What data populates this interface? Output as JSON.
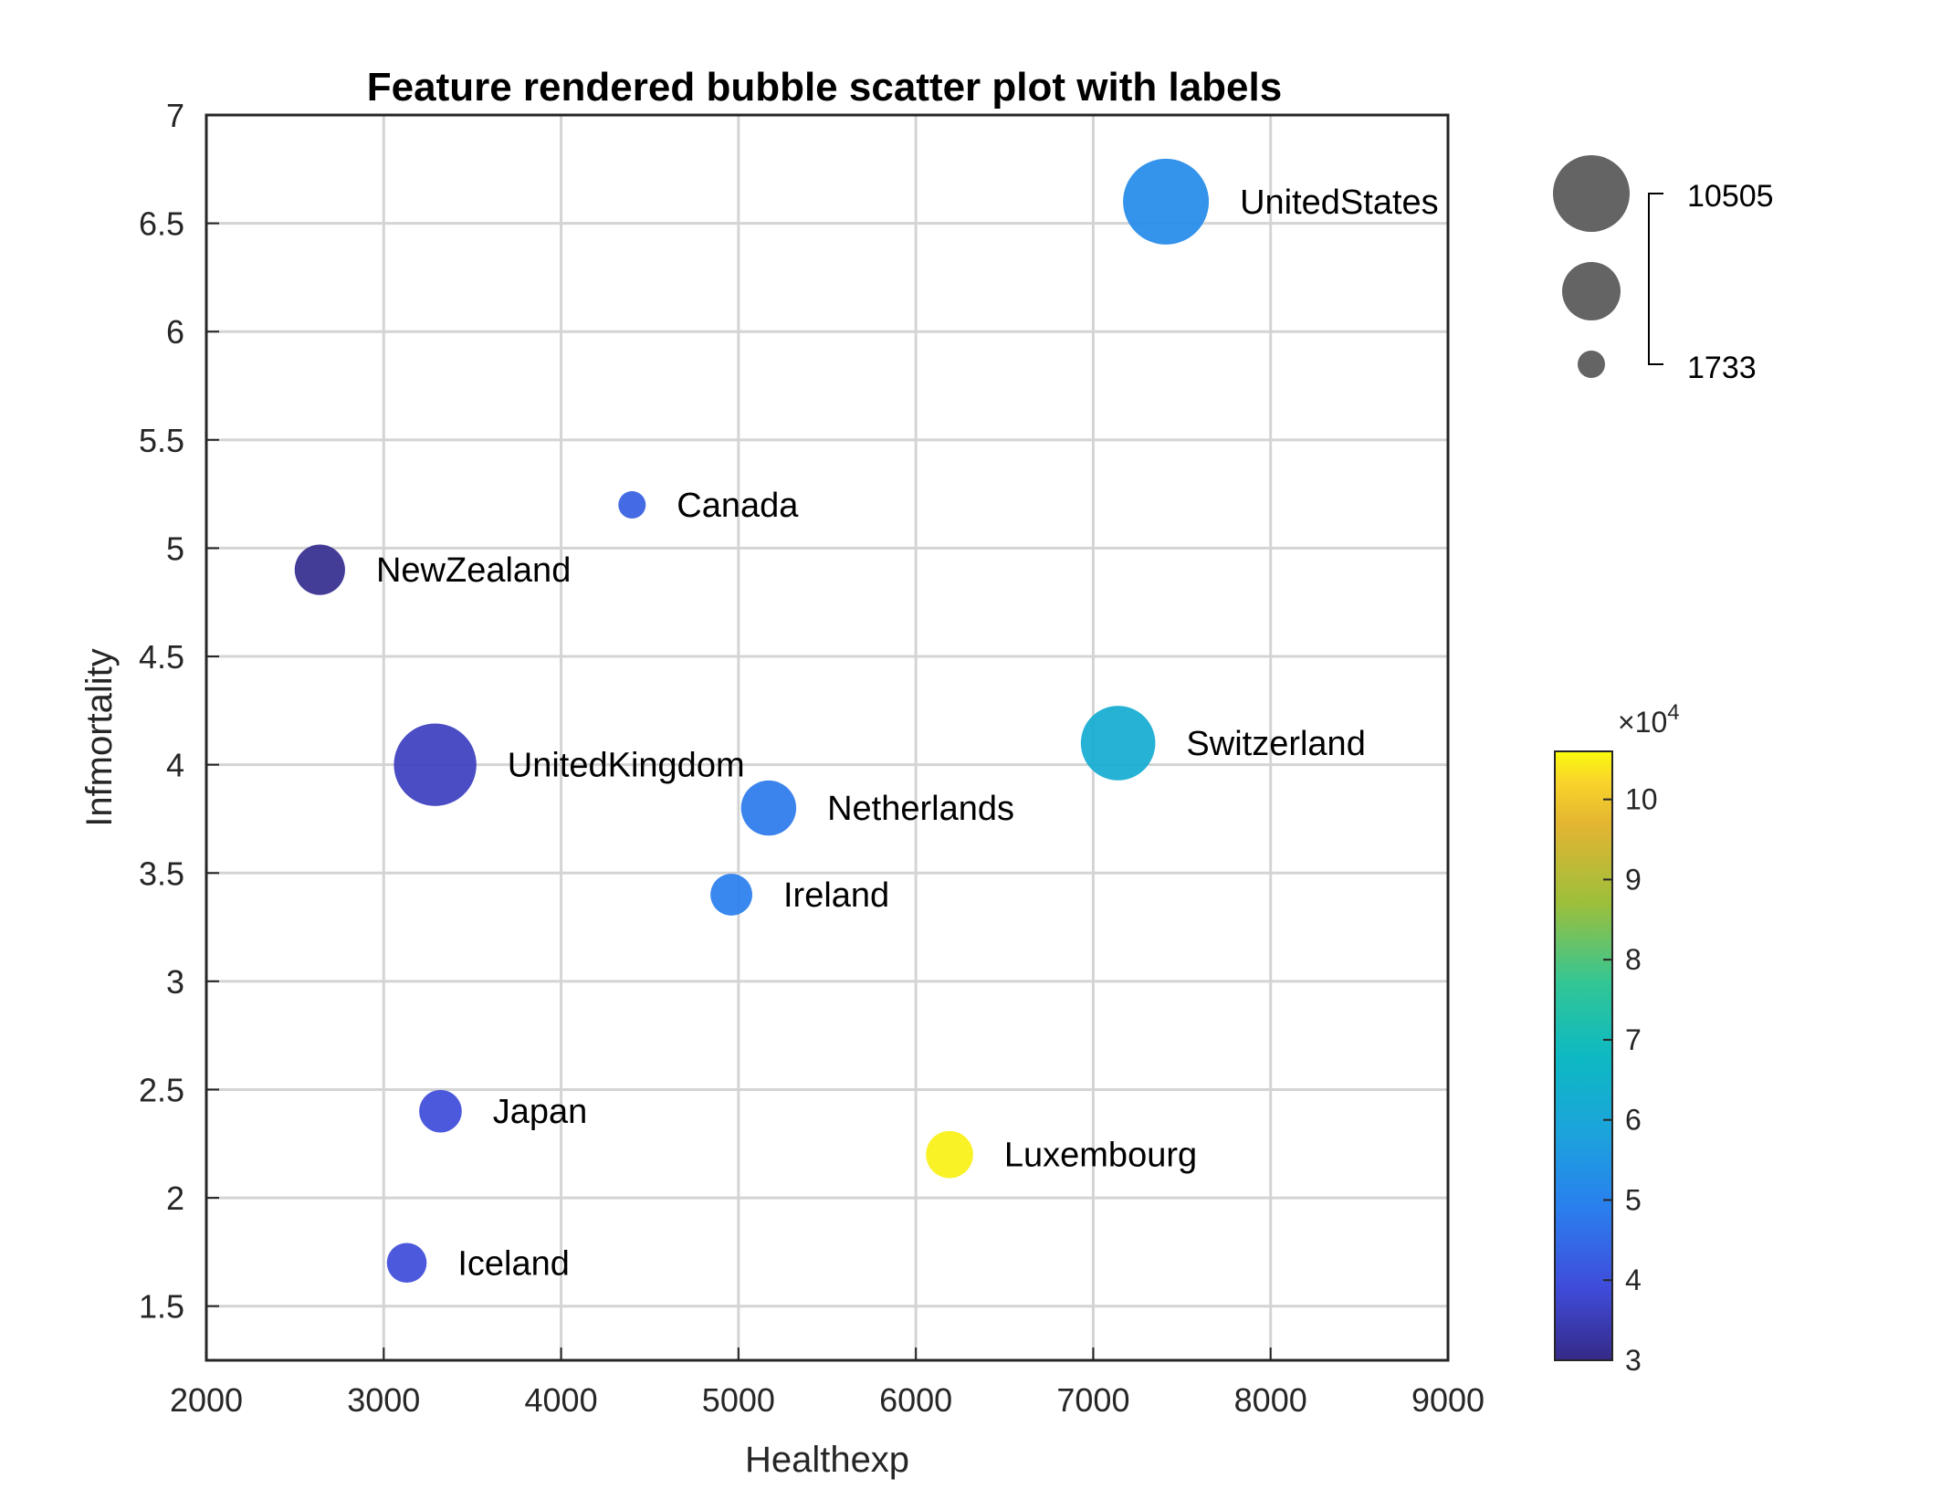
{
  "chart_data": {
    "type": "scatter",
    "subtype": "bubble",
    "title": "Feature rendered bubble scatter plot with labels",
    "xlabel": "Healthexp",
    "ylabel": "Infmortality",
    "xlim": [
      2000,
      9000
    ],
    "ylim": [
      1.25,
      7
    ],
    "xticks": [
      2000,
      3000,
      4000,
      5000,
      6000,
      7000,
      8000,
      9000
    ],
    "yticks": [
      1.5,
      2,
      2.5,
      3,
      3.5,
      4,
      4.5,
      5,
      5.5,
      6,
      6.5,
      7
    ],
    "grid": true,
    "points": [
      {
        "label": "UnitedStates",
        "x": 7410,
        "y": 6.6,
        "size": 10505,
        "color_value": 52000
      },
      {
        "label": "Canada",
        "x": 4400,
        "y": 5.2,
        "size": 1733,
        "color_value": 43000
      },
      {
        "label": "NewZealand",
        "x": 2640,
        "y": 4.9,
        "size": 5200,
        "color_value": 31000
      },
      {
        "label": "Switzerland",
        "x": 7140,
        "y": 4.1,
        "size": 8800,
        "color_value": 62000
      },
      {
        "label": "UnitedKingdom",
        "x": 3290,
        "y": 4.0,
        "size": 10000,
        "color_value": 36000
      },
      {
        "label": "Netherlands",
        "x": 5170,
        "y": 3.8,
        "size": 5900,
        "color_value": 48000
      },
      {
        "label": "Ireland",
        "x": 4960,
        "y": 3.4,
        "size": 3900,
        "color_value": 49000
      },
      {
        "label": "Japan",
        "x": 3320,
        "y": 2.4,
        "size": 4000,
        "color_value": 39000
      },
      {
        "label": "Luxembourg",
        "x": 6190,
        "y": 2.2,
        "size": 4700,
        "color_value": 105000
      },
      {
        "label": "Iceland",
        "x": 3130,
        "y": 1.7,
        "size": 3600,
        "color_value": 39000
      }
    ],
    "size_legend": {
      "max_label": "10505",
      "min_label": "1733",
      "position": "top-right"
    },
    "colorbar": {
      "range": [
        30000,
        106000
      ],
      "ticks": [
        3,
        4,
        5,
        6,
        7,
        8,
        9,
        10
      ],
      "multiplier_prefix": "×10",
      "multiplier_exponent": "4",
      "colormap": "parula",
      "position": "right"
    }
  },
  "colors": {
    "axis": "#262626",
    "grid": "#d9d9d9",
    "legend_bubble": "#646464"
  }
}
